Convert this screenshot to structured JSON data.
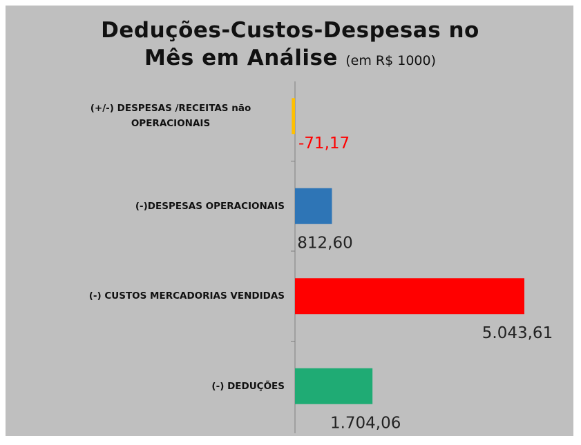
{
  "chart_data": {
    "type": "bar",
    "orientation": "horizontal",
    "title": "Deduções-Custos-Despesas no Mês em Análise",
    "subtitle": "(em R$ 1000)",
    "categories": [
      "(+/-) DESPESAS /RECEITAS não OPERACIONAIS",
      "(-)DESPESAS OPERACIONAIS",
      "(-) CUSTOS MERCADORIAS VENDIDAS",
      "(-) DEDUÇÕES"
    ],
    "values": [
      -71.17,
      812.6,
      5043.61,
      1704.06
    ],
    "value_labels": [
      "-71,17",
      "812,60",
      "5.043,61",
      "1.704,06"
    ],
    "colors": [
      "#ffc000",
      "#2e75b6",
      "#ff0000",
      "#1fab74"
    ],
    "negative_label_color": "#ff0000"
  }
}
